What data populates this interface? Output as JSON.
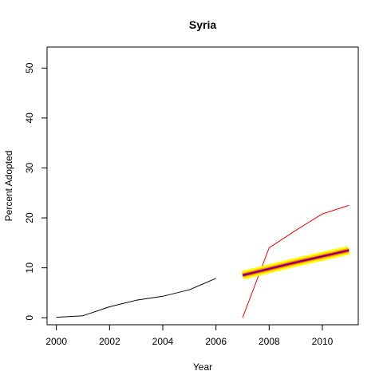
{
  "chart_data": {
    "type": "line",
    "title": "Syria",
    "xlabel": "Year",
    "ylabel": "Percent Adopted",
    "xlim": [
      1999.65,
      2011.35
    ],
    "ylim": [
      -1.4,
      54.2
    ],
    "x_ticks": [
      2000,
      2002,
      2004,
      2006,
      2008,
      2010
    ],
    "y_ticks": [
      0,
      10,
      20,
      30,
      40,
      50
    ],
    "grid": false,
    "legend": "none",
    "series": [
      {
        "role": "observed",
        "color": "#000000",
        "width": 1,
        "x": [
          2000,
          2001,
          2002,
          2003,
          2004,
          2005,
          2006
        ],
        "y": [
          0.1,
          0.4,
          2.2,
          3.5,
          4.3,
          5.6,
          7.9
        ]
      },
      {
        "role": "forecast-upper-red",
        "color": "#ff0000",
        "width": 1,
        "x": [
          2007,
          2008,
          2009,
          2010,
          2011
        ],
        "y": [
          0.0,
          14.0,
          17.5,
          20.8,
          22.5
        ]
      },
      {
        "role": "forecast-band-yellow",
        "color": "#ffff00",
        "width": 11,
        "x": [
          2007,
          2008,
          2009,
          2010,
          2011
        ],
        "y": [
          8.5,
          9.8,
          11.1,
          12.3,
          13.5
        ]
      },
      {
        "role": "forecast-band-orange",
        "color": "#ffa500",
        "width": 6,
        "x": [
          2007,
          2008,
          2009,
          2010,
          2011
        ],
        "y": [
          8.5,
          9.8,
          11.1,
          12.3,
          13.5
        ]
      },
      {
        "role": "forecast-band-red",
        "color": "#ff0000",
        "width": 3,
        "x": [
          2007,
          2008,
          2009,
          2010,
          2011
        ],
        "y": [
          8.5,
          9.8,
          11.1,
          12.3,
          13.5
        ]
      },
      {
        "role": "forecast-mean",
        "color": "#0000ff",
        "width": 1,
        "x": [
          2007,
          2008,
          2009,
          2010,
          2011
        ],
        "y": [
          8.5,
          9.8,
          11.1,
          12.3,
          13.5
        ]
      }
    ]
  }
}
